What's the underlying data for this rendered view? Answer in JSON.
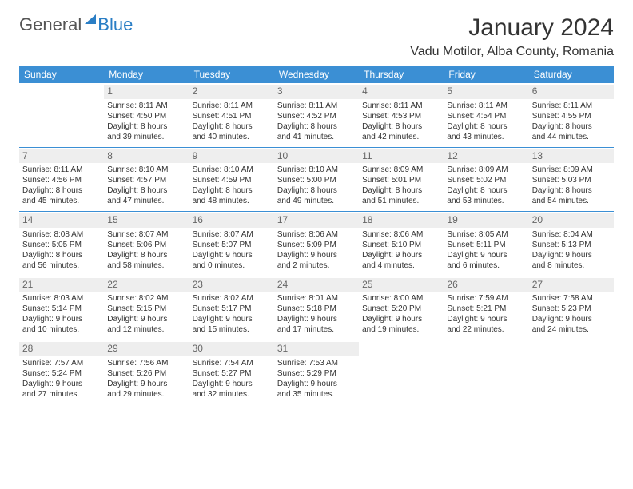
{
  "logo": {
    "general": "General",
    "blue": "Blue"
  },
  "title": "January 2024",
  "location": "Vadu Motilor, Alba County, Romania",
  "header_bg": "#3b8fd4",
  "days": [
    "Sunday",
    "Monday",
    "Tuesday",
    "Wednesday",
    "Thursday",
    "Friday",
    "Saturday"
  ],
  "weeks": [
    [
      null,
      {
        "n": "1",
        "sr": "Sunrise: 8:11 AM",
        "ss": "Sunset: 4:50 PM",
        "d1": "Daylight: 8 hours",
        "d2": "and 39 minutes."
      },
      {
        "n": "2",
        "sr": "Sunrise: 8:11 AM",
        "ss": "Sunset: 4:51 PM",
        "d1": "Daylight: 8 hours",
        "d2": "and 40 minutes."
      },
      {
        "n": "3",
        "sr": "Sunrise: 8:11 AM",
        "ss": "Sunset: 4:52 PM",
        "d1": "Daylight: 8 hours",
        "d2": "and 41 minutes."
      },
      {
        "n": "4",
        "sr": "Sunrise: 8:11 AM",
        "ss": "Sunset: 4:53 PM",
        "d1": "Daylight: 8 hours",
        "d2": "and 42 minutes."
      },
      {
        "n": "5",
        "sr": "Sunrise: 8:11 AM",
        "ss": "Sunset: 4:54 PM",
        "d1": "Daylight: 8 hours",
        "d2": "and 43 minutes."
      },
      {
        "n": "6",
        "sr": "Sunrise: 8:11 AM",
        "ss": "Sunset: 4:55 PM",
        "d1": "Daylight: 8 hours",
        "d2": "and 44 minutes."
      }
    ],
    [
      {
        "n": "7",
        "sr": "Sunrise: 8:11 AM",
        "ss": "Sunset: 4:56 PM",
        "d1": "Daylight: 8 hours",
        "d2": "and 45 minutes."
      },
      {
        "n": "8",
        "sr": "Sunrise: 8:10 AM",
        "ss": "Sunset: 4:57 PM",
        "d1": "Daylight: 8 hours",
        "d2": "and 47 minutes."
      },
      {
        "n": "9",
        "sr": "Sunrise: 8:10 AM",
        "ss": "Sunset: 4:59 PM",
        "d1": "Daylight: 8 hours",
        "d2": "and 48 minutes."
      },
      {
        "n": "10",
        "sr": "Sunrise: 8:10 AM",
        "ss": "Sunset: 5:00 PM",
        "d1": "Daylight: 8 hours",
        "d2": "and 49 minutes."
      },
      {
        "n": "11",
        "sr": "Sunrise: 8:09 AM",
        "ss": "Sunset: 5:01 PM",
        "d1": "Daylight: 8 hours",
        "d2": "and 51 minutes."
      },
      {
        "n": "12",
        "sr": "Sunrise: 8:09 AM",
        "ss": "Sunset: 5:02 PM",
        "d1": "Daylight: 8 hours",
        "d2": "and 53 minutes."
      },
      {
        "n": "13",
        "sr": "Sunrise: 8:09 AM",
        "ss": "Sunset: 5:03 PM",
        "d1": "Daylight: 8 hours",
        "d2": "and 54 minutes."
      }
    ],
    [
      {
        "n": "14",
        "sr": "Sunrise: 8:08 AM",
        "ss": "Sunset: 5:05 PM",
        "d1": "Daylight: 8 hours",
        "d2": "and 56 minutes."
      },
      {
        "n": "15",
        "sr": "Sunrise: 8:07 AM",
        "ss": "Sunset: 5:06 PM",
        "d1": "Daylight: 8 hours",
        "d2": "and 58 minutes."
      },
      {
        "n": "16",
        "sr": "Sunrise: 8:07 AM",
        "ss": "Sunset: 5:07 PM",
        "d1": "Daylight: 9 hours",
        "d2": "and 0 minutes."
      },
      {
        "n": "17",
        "sr": "Sunrise: 8:06 AM",
        "ss": "Sunset: 5:09 PM",
        "d1": "Daylight: 9 hours",
        "d2": "and 2 minutes."
      },
      {
        "n": "18",
        "sr": "Sunrise: 8:06 AM",
        "ss": "Sunset: 5:10 PM",
        "d1": "Daylight: 9 hours",
        "d2": "and 4 minutes."
      },
      {
        "n": "19",
        "sr": "Sunrise: 8:05 AM",
        "ss": "Sunset: 5:11 PM",
        "d1": "Daylight: 9 hours",
        "d2": "and 6 minutes."
      },
      {
        "n": "20",
        "sr": "Sunrise: 8:04 AM",
        "ss": "Sunset: 5:13 PM",
        "d1": "Daylight: 9 hours",
        "d2": "and 8 minutes."
      }
    ],
    [
      {
        "n": "21",
        "sr": "Sunrise: 8:03 AM",
        "ss": "Sunset: 5:14 PM",
        "d1": "Daylight: 9 hours",
        "d2": "and 10 minutes."
      },
      {
        "n": "22",
        "sr": "Sunrise: 8:02 AM",
        "ss": "Sunset: 5:15 PM",
        "d1": "Daylight: 9 hours",
        "d2": "and 12 minutes."
      },
      {
        "n": "23",
        "sr": "Sunrise: 8:02 AM",
        "ss": "Sunset: 5:17 PM",
        "d1": "Daylight: 9 hours",
        "d2": "and 15 minutes."
      },
      {
        "n": "24",
        "sr": "Sunrise: 8:01 AM",
        "ss": "Sunset: 5:18 PM",
        "d1": "Daylight: 9 hours",
        "d2": "and 17 minutes."
      },
      {
        "n": "25",
        "sr": "Sunrise: 8:00 AM",
        "ss": "Sunset: 5:20 PM",
        "d1": "Daylight: 9 hours",
        "d2": "and 19 minutes."
      },
      {
        "n": "26",
        "sr": "Sunrise: 7:59 AM",
        "ss": "Sunset: 5:21 PM",
        "d1": "Daylight: 9 hours",
        "d2": "and 22 minutes."
      },
      {
        "n": "27",
        "sr": "Sunrise: 7:58 AM",
        "ss": "Sunset: 5:23 PM",
        "d1": "Daylight: 9 hours",
        "d2": "and 24 minutes."
      }
    ],
    [
      {
        "n": "28",
        "sr": "Sunrise: 7:57 AM",
        "ss": "Sunset: 5:24 PM",
        "d1": "Daylight: 9 hours",
        "d2": "and 27 minutes."
      },
      {
        "n": "29",
        "sr": "Sunrise: 7:56 AM",
        "ss": "Sunset: 5:26 PM",
        "d1": "Daylight: 9 hours",
        "d2": "and 29 minutes."
      },
      {
        "n": "30",
        "sr": "Sunrise: 7:54 AM",
        "ss": "Sunset: 5:27 PM",
        "d1": "Daylight: 9 hours",
        "d2": "and 32 minutes."
      },
      {
        "n": "31",
        "sr": "Sunrise: 7:53 AM",
        "ss": "Sunset: 5:29 PM",
        "d1": "Daylight: 9 hours",
        "d2": "and 35 minutes."
      },
      null,
      null,
      null
    ]
  ]
}
